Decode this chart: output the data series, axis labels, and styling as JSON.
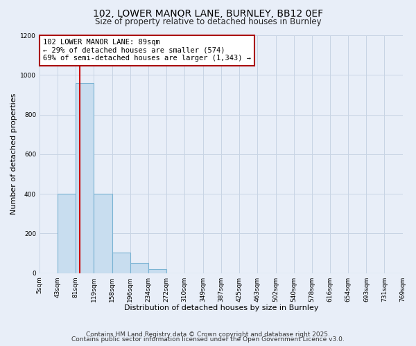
{
  "title": "102, LOWER MANOR LANE, BURNLEY, BB12 0EF",
  "subtitle": "Size of property relative to detached houses in Burnley",
  "xlabel": "Distribution of detached houses by size in Burnley",
  "ylabel": "Number of detached properties",
  "bin_edges": [
    5,
    43,
    81,
    119,
    158,
    196,
    234,
    272,
    310,
    349,
    387,
    425,
    463,
    502,
    540,
    578,
    616,
    654,
    693,
    731,
    769
  ],
  "bar_heights": [
    0,
    400,
    960,
    400,
    105,
    50,
    20,
    0,
    0,
    0,
    0,
    0,
    0,
    0,
    0,
    0,
    0,
    0,
    0,
    0
  ],
  "bar_color": "#c8ddef",
  "bar_edge_color": "#7ab3d3",
  "property_size": 89,
  "property_line_color": "#cc0000",
  "annotation_line1": "102 LOWER MANOR LANE: 89sqm",
  "annotation_line2": "← 29% of detached houses are smaller (574)",
  "annotation_line3": "69% of semi-detached houses are larger (1,343) →",
  "annotation_box_edge_color": "#aa0000",
  "annotation_box_face_color": "#ffffff",
  "ylim": [
    0,
    1200
  ],
  "yticks": [
    0,
    200,
    400,
    600,
    800,
    1000,
    1200
  ],
  "grid_color": "#c8d4e4",
  "background_color": "#e8eef8",
  "plot_bg_color": "#e8eef8",
  "footer_line1": "Contains HM Land Registry data © Crown copyright and database right 2025.",
  "footer_line2": "Contains public sector information licensed under the Open Government Licence v3.0.",
  "title_fontsize": 10,
  "subtitle_fontsize": 8.5,
  "annotation_fontsize": 7.5,
  "tick_fontsize": 6.5,
  "footer_fontsize": 6.5
}
